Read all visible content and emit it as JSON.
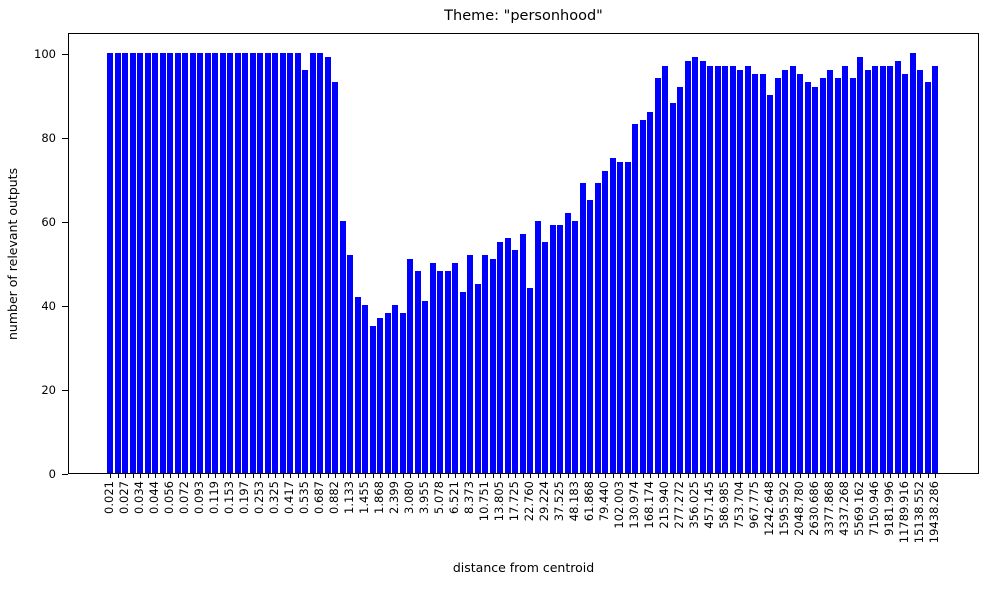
{
  "title": "Theme: \"personhood\"",
  "chart_data": {
    "type": "bar",
    "title": "Theme: \"personhood\"",
    "xlabel": "distance from centroid",
    "ylabel": "number of relevant outputs",
    "bar_color": "#0000ff",
    "axis_color": "#000000",
    "background_color": "#ffffff",
    "ylim": [
      0,
      105
    ],
    "yticks": [
      0,
      20,
      40,
      60,
      80,
      100
    ],
    "grid": false,
    "legend": null,
    "x_label_every_nth_bar": 2,
    "x_tick_labels": [
      "0.021",
      "0.027",
      "0.034",
      "0.044",
      "0.056",
      "0.072",
      "0.093",
      "0.119",
      "0.153",
      "0.197",
      "0.253",
      "0.325",
      "0.417",
      "0.535",
      "0.687",
      "0.882",
      "1.133",
      "1.455",
      "1.868",
      "2.399",
      "3.080",
      "3.955",
      "5.078",
      "6.521",
      "8.373",
      "10.751",
      "13.805",
      "17.725",
      "22.760",
      "29.224",
      "37.525",
      "48.183",
      "61.868",
      "79.440",
      "102.003",
      "130.974",
      "168.174",
      "215.940",
      "277.272",
      "356.025",
      "457.145",
      "586.985",
      "753.704",
      "967.775",
      "1242.648",
      "1595.592",
      "2048.780",
      "2630.686",
      "3377.868",
      "4337.268",
      "5569.162",
      "7150.946",
      "9181.996",
      "11789.916",
      "15138.552",
      "19438.286"
    ],
    "values": [
      100,
      100,
      100,
      100,
      100,
      100,
      100,
      100,
      100,
      100,
      100,
      100,
      100,
      100,
      100,
      100,
      100,
      100,
      100,
      100,
      100,
      100,
      100,
      100,
      100,
      100,
      96,
      100,
      100,
      99,
      93,
      60,
      52,
      42,
      40,
      35,
      37,
      38,
      40,
      38,
      51,
      48,
      41,
      50,
      48,
      48,
      50,
      43,
      52,
      45,
      52,
      51,
      55,
      56,
      53,
      57,
      44,
      60,
      55,
      59,
      59,
      62,
      60,
      69,
      65,
      69,
      72,
      75,
      74,
      74,
      83,
      84,
      86,
      94,
      97,
      88,
      92,
      98,
      99,
      98,
      97,
      97,
      97,
      97,
      96,
      97,
      95,
      95,
      90,
      94,
      96,
      97,
      95,
      93,
      92,
      94,
      96,
      94,
      97,
      94,
      99,
      96,
      97,
      97,
      97,
      98,
      95,
      100,
      96,
      93,
      97
    ]
  }
}
